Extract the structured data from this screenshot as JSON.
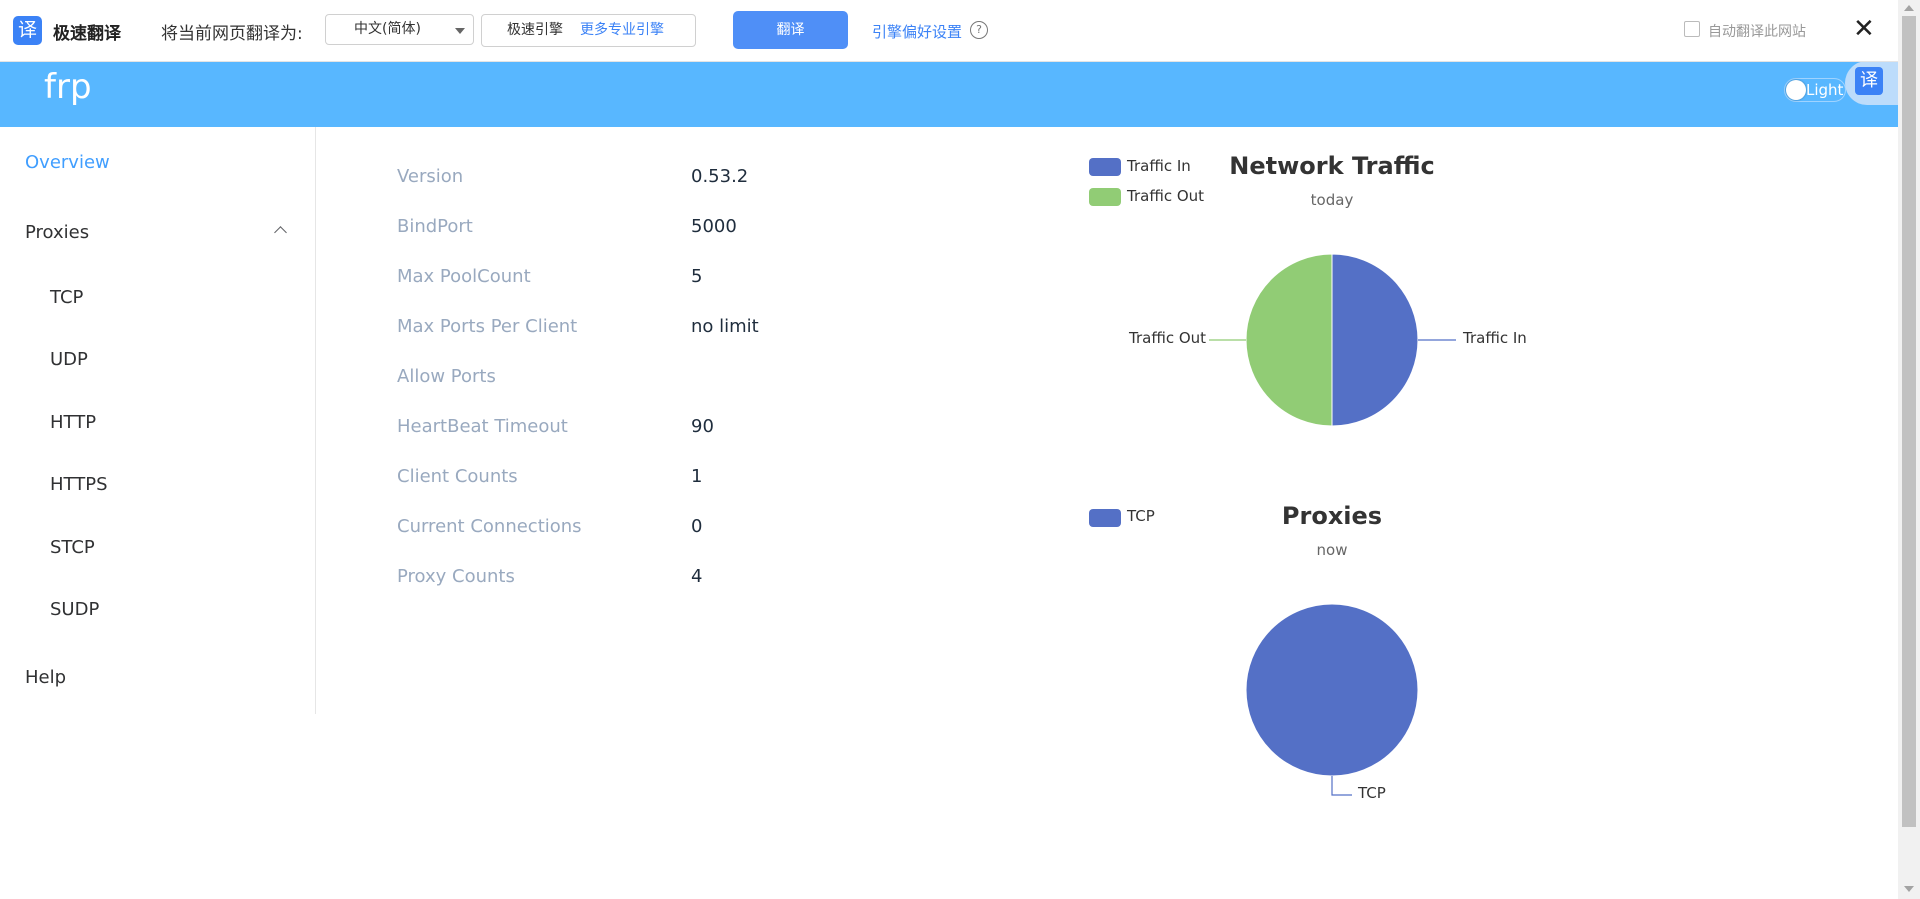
{
  "translate_bar": {
    "logo_glyph": "译",
    "brand": "极速翻译",
    "prompt": "将当前网页翻译为:",
    "language_selected": "中文(简体)",
    "engine_current": "极速引擎",
    "engine_more": "更多专业引擎",
    "translate_button": "翻译",
    "preferences_link": "引擎偏好设置",
    "help_glyph": "?",
    "auto_translate_label": "自动翻译此网站",
    "close_glyph": "✕"
  },
  "header": {
    "app_title": "frp",
    "theme_toggle_label": "Light",
    "fab_glyph": "译"
  },
  "sidebar": {
    "overview": "Overview",
    "proxies": "Proxies",
    "proxy_types": [
      "TCP",
      "UDP",
      "HTTP",
      "HTTPS",
      "STCP",
      "SUDP"
    ],
    "help": "Help"
  },
  "server_info": [
    {
      "label": "Version",
      "value": "0.53.2"
    },
    {
      "label": "BindPort",
      "value": "5000"
    },
    {
      "label": "Max PoolCount",
      "value": "5"
    },
    {
      "label": "Max Ports Per Client",
      "value": "no limit"
    },
    {
      "label": "Allow Ports",
      "value": ""
    },
    {
      "label": "HeartBeat Timeout",
      "value": "90"
    },
    {
      "label": "Client Counts",
      "value": "1"
    },
    {
      "label": "Current Connections",
      "value": "0"
    },
    {
      "label": "Proxy Counts",
      "value": "4"
    }
  ],
  "colors": {
    "header": "#58b7ff",
    "accent": "#409eff",
    "traffic_in": "#5470c6",
    "traffic_out": "#91cc75"
  },
  "chart_data": [
    {
      "type": "pie",
      "title": "Network Traffic",
      "subtitle": "today",
      "legend_position": "top-left",
      "categories": [
        "Traffic In",
        "Traffic Out"
      ],
      "values": [
        50,
        50
      ]
    },
    {
      "type": "pie",
      "title": "Proxies",
      "subtitle": "now",
      "legend_position": "top-left",
      "categories": [
        "TCP"
      ],
      "values": [
        100
      ]
    }
  ]
}
